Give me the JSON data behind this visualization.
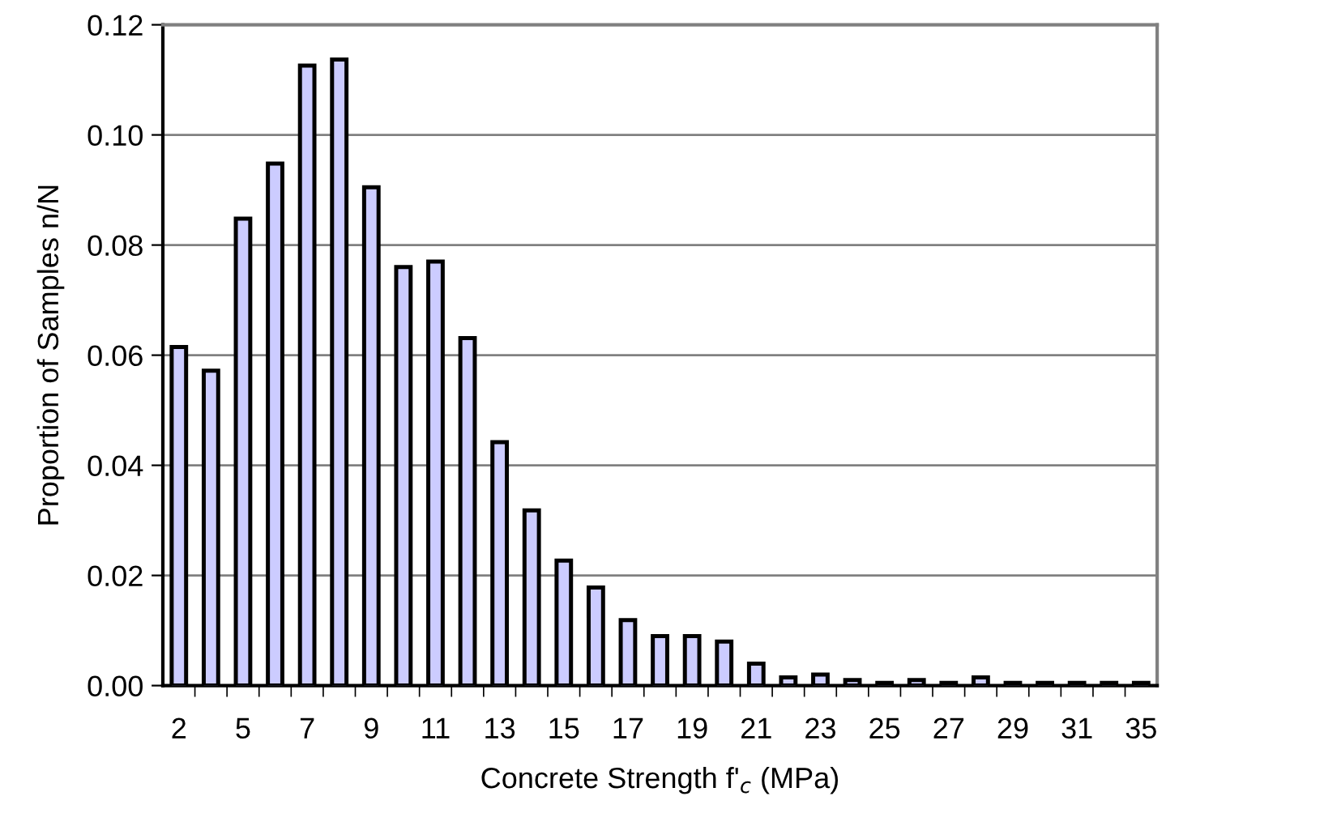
{
  "chart_data": {
    "type": "bar",
    "xlabel": "Concrete Strength f'$_{c}$ (MPa)",
    "ylabel": "Proportion of Samples n/N",
    "categories": [
      "2",
      null,
      "5",
      null,
      "7",
      null,
      "9",
      null,
      "11",
      null,
      "13",
      null,
      "15",
      null,
      "17",
      null,
      "19",
      null,
      "21",
      null,
      "23",
      null,
      "25",
      null,
      "27",
      null,
      "29",
      null,
      "31",
      null,
      "35"
    ],
    "values": [
      0.0615,
      0.0572,
      0.0848,
      0.0948,
      0.1126,
      0.1137,
      0.0905,
      0.076,
      0.077,
      0.0631,
      0.0442,
      0.0318,
      0.0227,
      0.0178,
      0.0119,
      0.009,
      0.009,
      0.008,
      0.004,
      0.0015,
      0.002,
      0.001,
      0.0005,
      0.001,
      0.0005,
      0.0015,
      0.0005,
      0.0005,
      0.0005,
      0.0005,
      0.0005
    ],
    "color": "#ccccff",
    "ylim": [
      0,
      0.12
    ],
    "yticks": [
      {
        "value": 0,
        "label": "0.00"
      },
      {
        "value": 0.02,
        "label": "0.02"
      },
      {
        "value": 0.04,
        "label": "0.04"
      },
      {
        "value": 0.06,
        "label": "0.06"
      },
      {
        "value": 0.08,
        "label": "0.08"
      },
      {
        "value": 0.1,
        "label": "0.10"
      },
      {
        "value": 0.12,
        "label": "0.12"
      }
    ],
    "grid": "y",
    "legend": false
  }
}
